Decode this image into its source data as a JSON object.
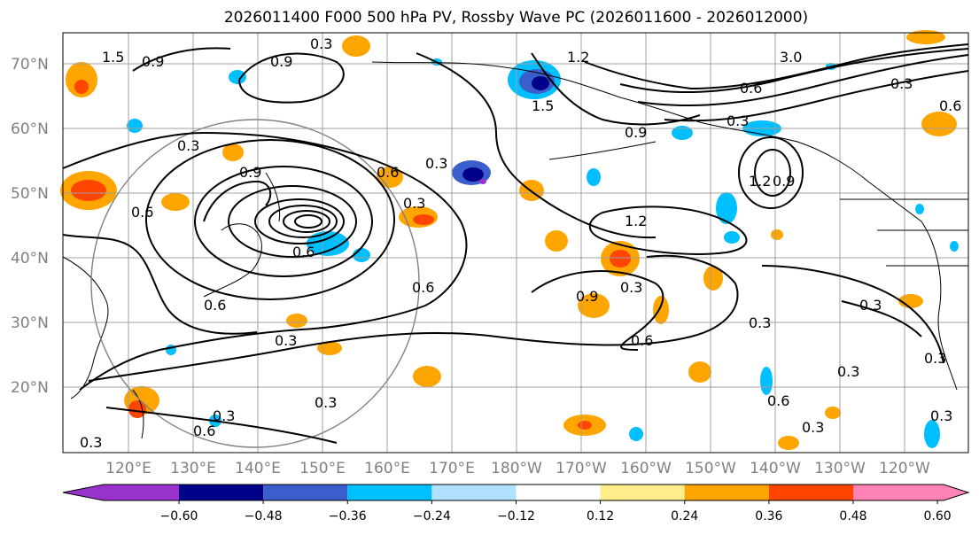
{
  "title": "2026011400 F000 500 hPa PV, Rossby Wave PC (2026011600 - 2026012000)",
  "lat_labels": [
    "70°N",
    "60°N",
    "50°N",
    "40°N",
    "30°N",
    "20°N"
  ],
  "lon_labels": [
    "120°E",
    "130°E",
    "140°E",
    "150°E",
    "160°E",
    "170°E",
    "180°W",
    "170°W",
    "160°W",
    "150°W",
    "140°W",
    "130°W",
    "120°W"
  ],
  "colorbar": {
    "colors": [
      "#9932cc",
      "#00008b",
      "#3a5fcd",
      "#00bfff",
      "#b0e2ff",
      "#ffffff",
      "#ffec8b",
      "#ffa500",
      "#ff4500",
      "#b22222",
      "#ff83b5"
    ],
    "tick_labels": [
      "−0.60",
      "−0.48",
      "−0.36",
      "−0.24",
      "−0.12",
      "0.12",
      "0.24",
      "0.36",
      "0.48",
      "0.60"
    ]
  },
  "contour_labels": [
    "0.3",
    "0.6",
    "0.9",
    "1.2",
    "1.5",
    "3.0"
  ]
}
